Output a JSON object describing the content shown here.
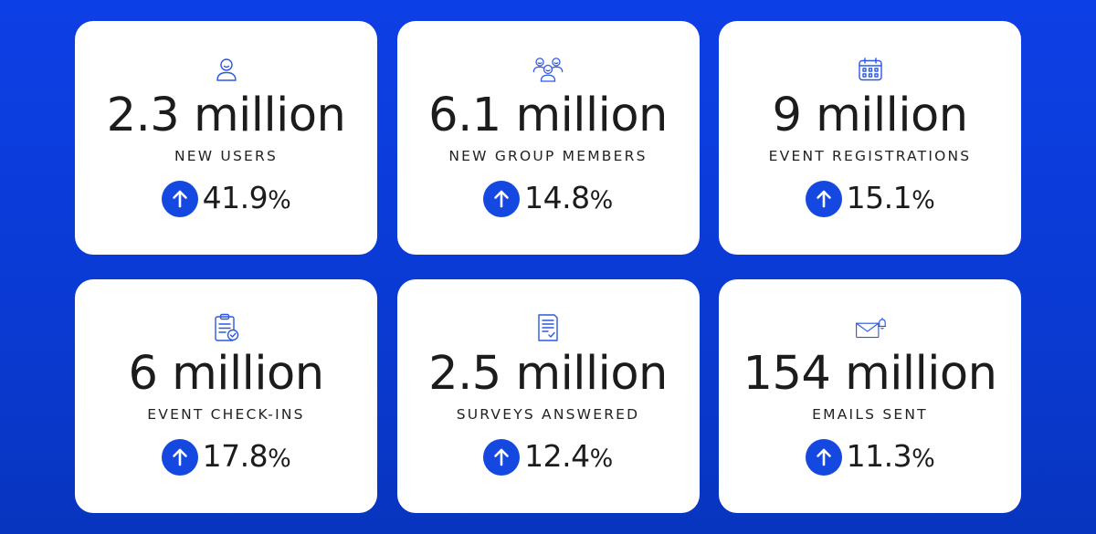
{
  "colors": {
    "background": "#0a3ad2",
    "card": "#ffffff",
    "accent": "#1448e0",
    "text": "#1c1c1c"
  },
  "cards": [
    {
      "icon": "user-icon",
      "value": "2.3 million",
      "label": "NEW USERS",
      "change": "41.9",
      "change_unit": "%"
    },
    {
      "icon": "group-members-icon",
      "value": "6.1 million",
      "label": "NEW GROUP MEMBERS",
      "change": "14.8",
      "change_unit": "%"
    },
    {
      "icon": "calendar-icon",
      "value": "9 million",
      "label": "EVENT REGISTRATIONS",
      "change": "15.1",
      "change_unit": "%"
    },
    {
      "icon": "clipboard-check-icon",
      "value": "6 million",
      "label": "EVENT CHECK-INS",
      "change": "17.8",
      "change_unit": "%"
    },
    {
      "icon": "survey-document-icon",
      "value": "2.5 million",
      "label": "SURVEYS ANSWERED",
      "change": "12.4",
      "change_unit": "%"
    },
    {
      "icon": "email-bell-icon",
      "value": "154 million",
      "label": "EMAILS SENT",
      "change": "11.3",
      "change_unit": "%"
    }
  ]
}
